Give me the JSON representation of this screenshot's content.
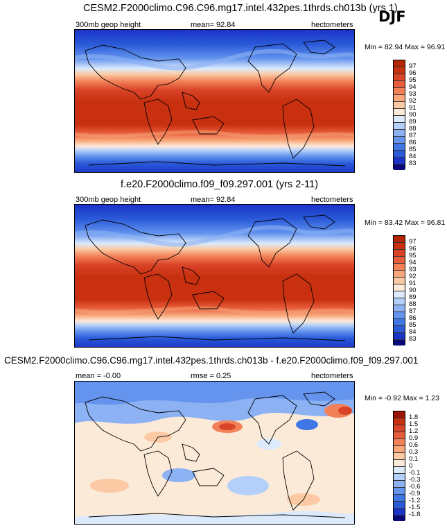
{
  "season": "DJF",
  "colors": {
    "abs_scale": [
      "#0a0a7a",
      "#1a34c8",
      "#2a5ad8",
      "#3f78e6",
      "#6494ee",
      "#8cb2f4",
      "#b4d0fa",
      "#dceafc",
      "#fcead8",
      "#fbc9a3",
      "#f8a67a",
      "#f28157",
      "#e85e3c",
      "#d94328",
      "#c8300f",
      "#b32505"
    ],
    "diff_scale": [
      "#0a0a7a",
      "#1a34c8",
      "#2a5ad8",
      "#3f78e6",
      "#6494ee",
      "#8cb2f4",
      "#b4d0fa",
      "#dceafc",
      "#fcead8",
      "#fbc9a3",
      "#f8a67a",
      "#f28157",
      "#e85e3c",
      "#d94328",
      "#c8300f",
      "#9b1404"
    ]
  },
  "panels": [
    {
      "title": "CESM2.F2000climo.C96.C96.mg17.intel.432pes.1thrds.ch013b (yrs 1)",
      "left_label": "300mb geop height",
      "center_label": "mean=  92.84",
      "right_label": "hectometers",
      "minmax": "Min =  82.94 Max =  96.91",
      "colorbar_labels": [
        "97",
        "96",
        "95",
        "94",
        "93",
        "92",
        "91",
        "90",
        "89",
        "88",
        "87",
        "86",
        "85",
        "84",
        "83"
      ],
      "kind": "abs"
    },
    {
      "title": "f.e20.F2000climo.f09_f09.297.001 (yrs 2-11)",
      "left_label": "300mb geop height",
      "center_label": "mean=  92.84",
      "right_label": "hectometers",
      "minmax": "Min =  83.42 Max =  96.81",
      "colorbar_labels": [
        "97",
        "96",
        "95",
        "94",
        "93",
        "92",
        "91",
        "90",
        "89",
        "88",
        "87",
        "86",
        "85",
        "84",
        "83"
      ],
      "kind": "abs"
    },
    {
      "title": "CESM2.F2000climo.C96.C96.mg17.intel.432pes.1thrds.ch013b - f.e20.F2000climo.f09_f09.297.001",
      "left_label": "mean =  -0.00",
      "center_label": "rmse =  0.25",
      "right_label": "hectometers",
      "minmax": "Min =  -0.92 Max =   1.23",
      "colorbar_labels": [
        "1.8",
        "1.5",
        "1.2",
        "0.9",
        "0.6",
        "0.3",
        "0.1",
        "0",
        "-0.1",
        "-0.3",
        "-0.6",
        "-0.9",
        "-1.2",
        "-1.5",
        "-1.8"
      ],
      "kind": "diff"
    }
  ]
}
